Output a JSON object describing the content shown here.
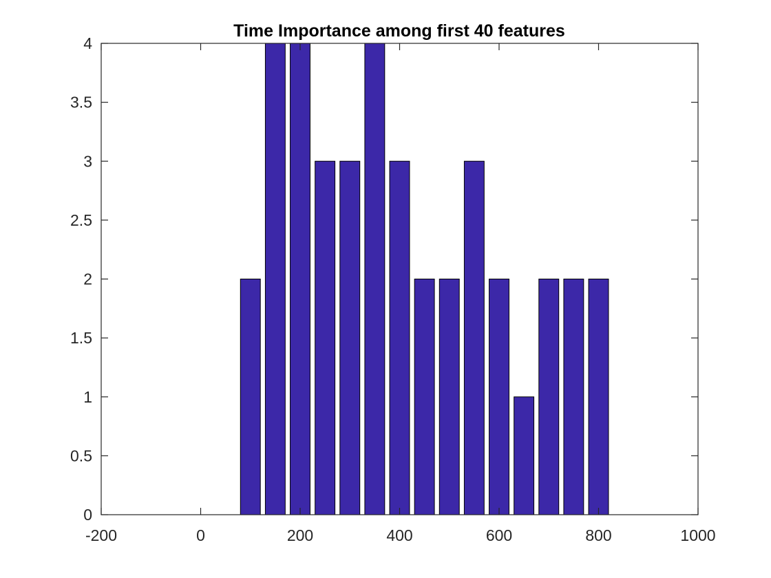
{
  "chart_data": {
    "type": "bar",
    "title": "Time Importance among first 40 features",
    "xlabel": "",
    "ylabel": "",
    "xlim": [
      -200,
      1000
    ],
    "ylim": [
      0,
      4
    ],
    "xticks": [
      -200,
      0,
      200,
      400,
      600,
      800,
      1000
    ],
    "xtick_labels": [
      "-200",
      "0",
      "200",
      "400",
      "600",
      "800",
      "1000"
    ],
    "yticks": [
      0,
      0.5,
      1,
      1.5,
      2,
      2.5,
      3,
      3.5,
      4
    ],
    "ytick_labels": [
      "0",
      "0.5",
      "1",
      "1.5",
      "2",
      "2.5",
      "3",
      "3.5",
      "4"
    ],
    "x": [
      100,
      150,
      200,
      250,
      300,
      350,
      400,
      450,
      500,
      550,
      600,
      650,
      700,
      750,
      800
    ],
    "values": [
      2,
      4,
      4,
      3,
      3,
      4,
      3,
      2,
      2,
      3,
      2,
      1,
      2,
      2,
      2
    ],
    "bar_width_data": 40,
    "bar_color": "#3C28A8",
    "bar_edge_color": "#000000",
    "axis_color": "#262626",
    "grid": false,
    "box": true
  }
}
